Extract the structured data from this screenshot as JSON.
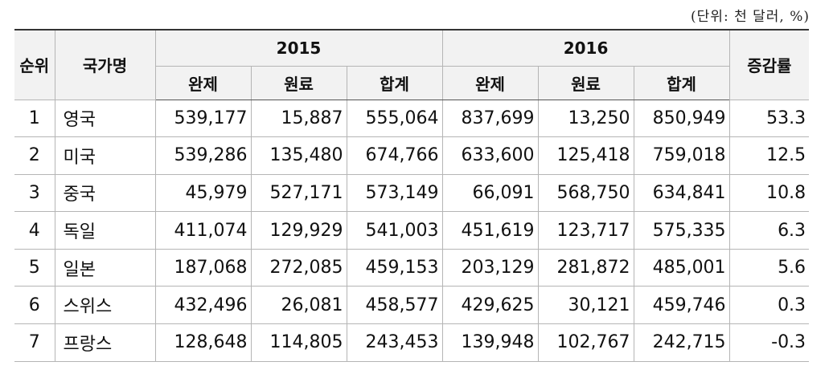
{
  "unit_note": "(단위: 천 달러, %)",
  "header": {
    "rank": "순위",
    "country": "국가명",
    "year1": "2015",
    "year2": "2016",
    "rate": "증감률",
    "sub": [
      "완제",
      "원료",
      "합계"
    ]
  },
  "rows": [
    {
      "rank": "1",
      "country": "영국",
      "v": [
        "539,177",
        "15,887",
        "555,064",
        "837,699",
        "13,250",
        "850,949"
      ],
      "rate": "53.3"
    },
    {
      "rank": "2",
      "country": "미국",
      "v": [
        "539,286",
        "135,480",
        "674,766",
        "633,600",
        "125,418",
        "759,018"
      ],
      "rate": "12.5"
    },
    {
      "rank": "3",
      "country": "중국",
      "v": [
        "45,979",
        "527,171",
        "573,149",
        "66,091",
        "568,750",
        "634,841"
      ],
      "rate": "10.8"
    },
    {
      "rank": "4",
      "country": "독일",
      "v": [
        "411,074",
        "129,929",
        "541,003",
        "451,619",
        "123,717",
        "575,335"
      ],
      "rate": "6.3"
    },
    {
      "rank": "5",
      "country": "일본",
      "v": [
        "187,068",
        "272,085",
        "459,153",
        "203,129",
        "281,872",
        "485,001"
      ],
      "rate": "5.6"
    },
    {
      "rank": "6",
      "country": "스위스",
      "v": [
        "432,496",
        "26,081",
        "458,577",
        "429,625",
        "30,121",
        "459,746"
      ],
      "rate": "0.3"
    },
    {
      "rank": "7",
      "country": "프랑스",
      "v": [
        "128,648",
        "114,805",
        "243,453",
        "139,948",
        "102,767",
        "242,715"
      ],
      "rate": "-0.3"
    }
  ]
}
